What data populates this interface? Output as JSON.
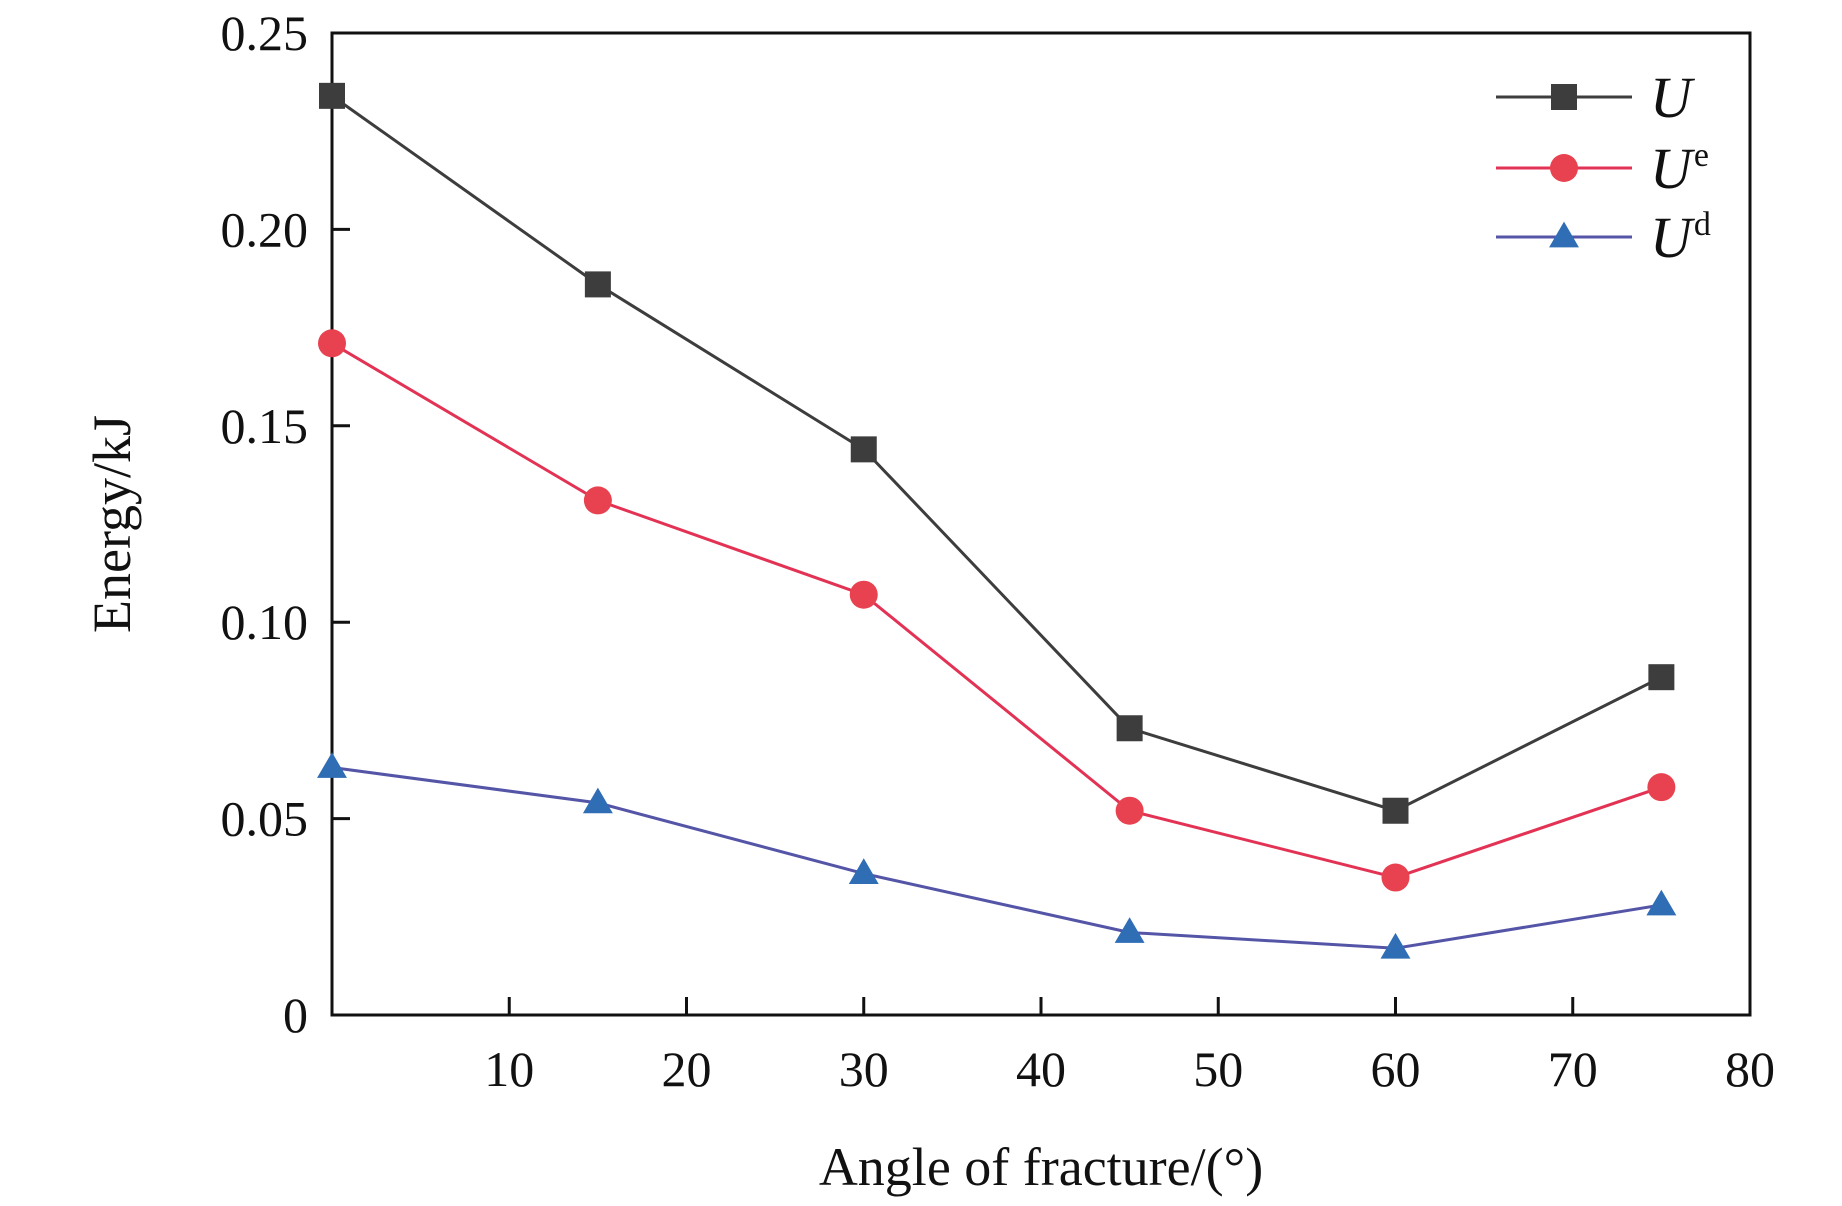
{
  "chart_data": {
    "type": "line",
    "title": "",
    "xlabel": "Angle of fracture/(°)",
    "ylabel": "Energy/kJ",
    "xlim": [
      0,
      80
    ],
    "ylim": [
      0,
      0.25
    ],
    "x_ticks": [
      10,
      20,
      30,
      40,
      50,
      60,
      70,
      80
    ],
    "y_ticks": [
      0,
      0.05,
      0.1,
      0.15,
      0.2,
      0.25
    ],
    "x_tick_labels": [
      "10",
      "20",
      "30",
      "40",
      "50",
      "60",
      "70",
      "80"
    ],
    "y_tick_labels": [
      "0",
      "0.05",
      "0.10",
      "0.15",
      "0.20",
      "0.25"
    ],
    "legend_position": "top-right",
    "grid": false,
    "x": [
      0,
      15,
      30,
      45,
      60,
      75
    ],
    "series": [
      {
        "name": "U",
        "base": "U",
        "sup": "",
        "marker": "square",
        "color": "#3d3d3d",
        "values": [
          0.234,
          0.186,
          0.144,
          0.073,
          0.052,
          0.086
        ]
      },
      {
        "name": "Ue",
        "base": "U",
        "sup": "e",
        "marker": "circle",
        "color": "#e8414f",
        "values": [
          0.171,
          0.131,
          0.107,
          0.052,
          0.035,
          0.058
        ]
      },
      {
        "name": "Ud",
        "base": "U",
        "sup": "d",
        "marker": "triangle",
        "color": "#2f6db5",
        "values": [
          0.063,
          0.054,
          0.036,
          0.021,
          0.017,
          0.028
        ]
      }
    ],
    "line_colors": {
      "U": "#3d3d3d",
      "Ue": "#e33355",
      "Ud": "#5555a8"
    }
  }
}
